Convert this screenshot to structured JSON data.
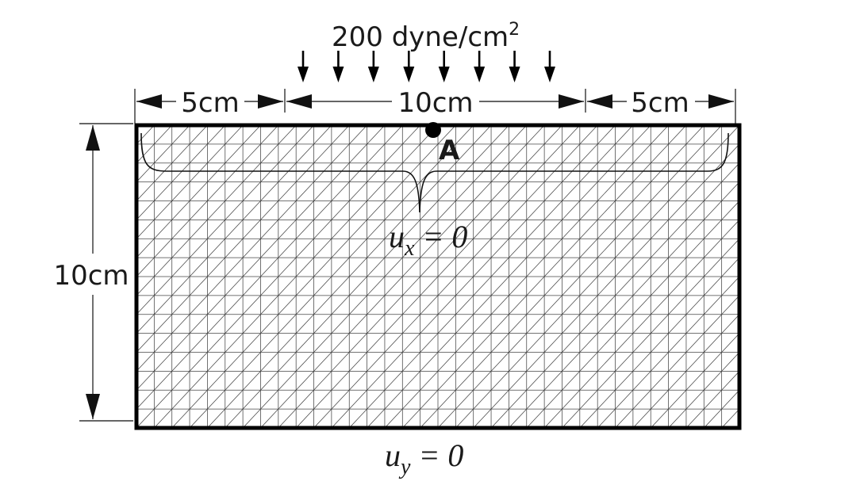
{
  "load": {
    "label": "200 dyne/cm",
    "superscript": "2",
    "arrow_count": 8
  },
  "dimensions": {
    "left_width": "5cm",
    "middle_width": "10cm",
    "right_width": "5cm",
    "height": "10cm"
  },
  "point": {
    "label": "A"
  },
  "boundary_conditions": {
    "top": {
      "var": "u",
      "sub": "x",
      "rest": " = 0"
    },
    "bottom": {
      "var": "u",
      "sub": "y",
      "rest": " = 0"
    }
  },
  "mesh": {
    "columns": 34,
    "rows": 16,
    "diagonal": "bottom-left to top-right"
  }
}
